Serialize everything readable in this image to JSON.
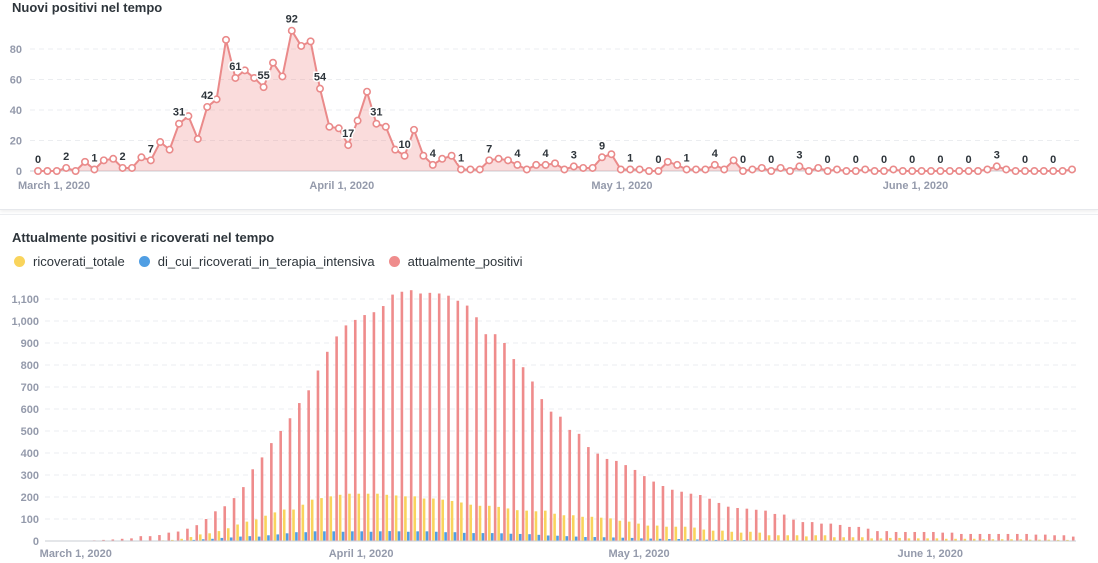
{
  "chart_data": [
    {
      "type": "line",
      "title": "Nuovi positivi nel tempo",
      "x_range": [
        "2020-03-01",
        "2020-06-19"
      ],
      "x_frequency": "daily",
      "x_tick_labels": [
        "March 1, 2020",
        "April 1, 2020",
        "May 1, 2020",
        "June 1, 2020"
      ],
      "x_tick_dates": [
        "2020-03-01",
        "2020-04-01",
        "2020-05-01",
        "2020-06-01"
      ],
      "ylim": [
        0,
        95
      ],
      "y_ticks": [
        0,
        20,
        40,
        60,
        80
      ],
      "grid": true,
      "area_fill": true,
      "data_labels": "every third point",
      "color": "#EA8A8A",
      "values": [
        0,
        0,
        0,
        2,
        0,
        6,
        1,
        7,
        8,
        2,
        2,
        9,
        7,
        19,
        14,
        31,
        36,
        21,
        42,
        47,
        86,
        61,
        66,
        61,
        55,
        71,
        62,
        92,
        82,
        85,
        54,
        29,
        28,
        17,
        33,
        52,
        31,
        29,
        14,
        10,
        27,
        10,
        4,
        8,
        10,
        1,
        1,
        1,
        7,
        8,
        7,
        4,
        1,
        4,
        4,
        5,
        1,
        3,
        2,
        2,
        9,
        11,
        1,
        1,
        1,
        0,
        0,
        6,
        4,
        1,
        1,
        1,
        4,
        1,
        7,
        0,
        1,
        2,
        0,
        2,
        0,
        3,
        0,
        2,
        0,
        1,
        0,
        0,
        1,
        0,
        0,
        1,
        0,
        0,
        0,
        0,
        0,
        0,
        0,
        0,
        0,
        1,
        3,
        1,
        0,
        0,
        0,
        0,
        0,
        0,
        1
      ]
    },
    {
      "type": "bar",
      "title": "Attualmente positivi e ricoverati nel tempo",
      "x_range": [
        "2020-03-01",
        "2020-06-19"
      ],
      "x_frequency": "daily",
      "x_tick_labels": [
        "March 1, 2020",
        "April 1, 2020",
        "May 1, 2020",
        "June 1, 2020"
      ],
      "x_tick_dates": [
        "2020-03-01",
        "2020-04-01",
        "2020-05-01",
        "2020-06-01"
      ],
      "ylim": [
        0,
        1140
      ],
      "y_ticks": [
        0,
        100,
        200,
        300,
        400,
        500,
        600,
        700,
        800,
        900,
        1000,
        1100
      ],
      "y_tick_labels": [
        "0",
        "100",
        "200",
        "300",
        "400",
        "500",
        "600",
        "700",
        "800",
        "900",
        "1,000",
        "1,100"
      ],
      "grid": true,
      "legend": "top-left",
      "series": [
        {
          "name": "ricoverati_totale",
          "color": "#F9D45C",
          "values": [
            0,
            0,
            0,
            0,
            0,
            0,
            0,
            0,
            0,
            0,
            0,
            0,
            0,
            3,
            5,
            10,
            18,
            30,
            35,
            45,
            58,
            75,
            88,
            98,
            115,
            130,
            143,
            143,
            165,
            188,
            195,
            203,
            210,
            215,
            215,
            215,
            215,
            210,
            207,
            203,
            203,
            193,
            193,
            188,
            182,
            175,
            165,
            160,
            160,
            155,
            148,
            140,
            138,
            135,
            138,
            124,
            117,
            117,
            110,
            110,
            106,
            103,
            92,
            88,
            79,
            70,
            70,
            65,
            65,
            65,
            61,
            52,
            47,
            47,
            42,
            38,
            42,
            38,
            26,
            26,
            26,
            26,
            21,
            26,
            26,
            17,
            17,
            17,
            17,
            12,
            12,
            14,
            14,
            12,
            12,
            12,
            12,
            10,
            10,
            10,
            10,
            8,
            8,
            8,
            8,
            8,
            6,
            6,
            6,
            5,
            5
          ]
        },
        {
          "name": "di_cui_ricoverati_in_terapia_intensiva",
          "color": "#509EE3",
          "values": [
            0,
            0,
            0,
            0,
            0,
            0,
            0,
            0,
            0,
            0,
            0,
            0,
            0,
            1,
            2,
            3,
            5,
            8,
            10,
            14,
            16,
            20,
            22,
            20,
            26,
            30,
            35,
            40,
            40,
            44,
            44,
            44,
            42,
            44,
            44,
            42,
            44,
            45,
            44,
            42,
            44,
            44,
            42,
            40,
            40,
            37,
            36,
            36,
            36,
            35,
            33,
            32,
            31,
            28,
            25,
            24,
            22,
            20,
            18,
            18,
            17,
            16,
            15,
            14,
            12,
            11,
            10,
            9,
            9,
            8,
            7,
            6,
            5,
            5,
            4,
            4,
            3,
            3,
            3,
            2,
            2,
            2,
            2,
            1,
            1,
            1,
            1,
            1,
            0,
            0,
            0,
            0,
            0,
            0,
            0,
            0,
            0,
            0,
            0,
            0,
            0,
            0,
            0,
            0,
            0,
            0,
            0,
            0,
            0,
            0,
            0
          ]
        },
        {
          "name": "attualmente_positivi",
          "color": "#EF8C8C",
          "values": [
            0,
            0,
            0,
            0,
            0,
            3,
            5,
            7,
            10,
            12,
            22,
            22,
            27,
            38,
            43,
            56,
            72,
            100,
            135,
            158,
            195,
            245,
            326,
            380,
            445,
            500,
            558,
            627,
            685,
            775,
            860,
            930,
            980,
            1005,
            1027,
            1040,
            1068,
            1120,
            1133,
            1140,
            1125,
            1128,
            1125,
            1115,
            1092,
            1070,
            1017,
            940,
            940,
            900,
            827,
            790,
            725,
            645,
            588,
            565,
            505,
            487,
            427,
            397,
            373,
            364,
            345,
            323,
            295,
            270,
            250,
            233,
            224,
            215,
            209,
            192,
            173,
            156,
            150,
            147,
            142,
            138,
            123,
            120,
            97,
            86,
            86,
            79,
            79,
            73,
            64,
            64,
            56,
            45,
            45,
            41,
            41,
            41,
            41,
            41,
            38,
            38,
            32,
            32,
            32,
            32,
            32,
            32,
            32,
            32,
            29,
            29,
            26,
            26,
            20
          ]
        }
      ]
    }
  ]
}
